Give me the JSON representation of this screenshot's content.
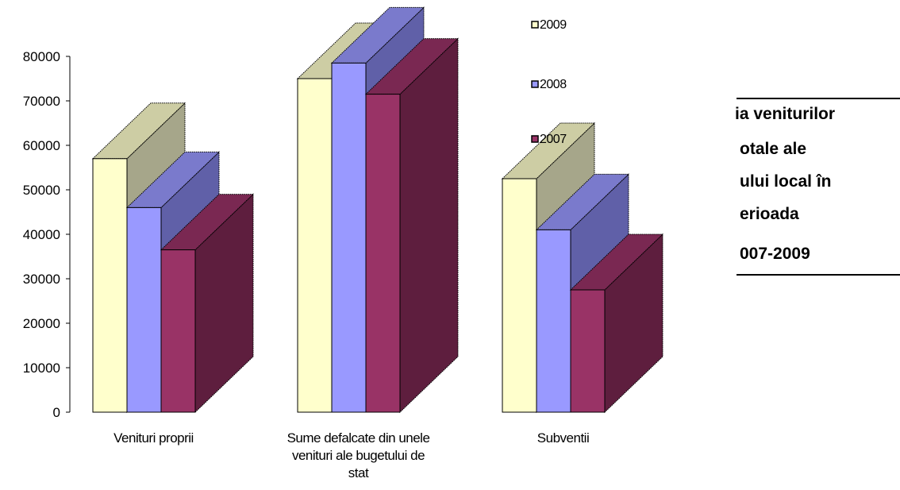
{
  "chart_data": {
    "type": "bar",
    "categories": [
      [
        "Venituri proprii"
      ],
      [
        "Sume defalcate din unele",
        "venituri ale bugetului de",
        "stat"
      ],
      [
        "Subventii"
      ]
    ],
    "series": [
      {
        "name": "2009",
        "values": [
          57000,
          75000,
          52500
        ]
      },
      {
        "name": "2008",
        "values": [
          46000,
          78500,
          41000
        ]
      },
      {
        "name": "2007",
        "values": [
          36500,
          71500,
          27500
        ]
      }
    ],
    "yticks": [
      "0",
      "10000",
      "20000",
      "30000",
      "40000",
      "50000",
      "60000",
      "70000",
      "80000"
    ],
    "ylim": [
      0,
      80000
    ],
    "grid": false,
    "legend_position": "right",
    "three_d": true,
    "colors": {
      "2009": {
        "front": "#FFFFCC",
        "side": "#A6A68A",
        "top": "#CDCDA4"
      },
      "2008": {
        "front": "#9999FF",
        "side": "#6060A8",
        "top": "#7A7ACC"
      },
      "2007": {
        "front": "#993366",
        "side": "#5E1E3E",
        "top": "#7A2852"
      }
    }
  },
  "side_title": {
    "lines": [
      "ia veniturilor",
      "otale ale",
      "ului local în",
      "erioada",
      "007-2009"
    ]
  }
}
